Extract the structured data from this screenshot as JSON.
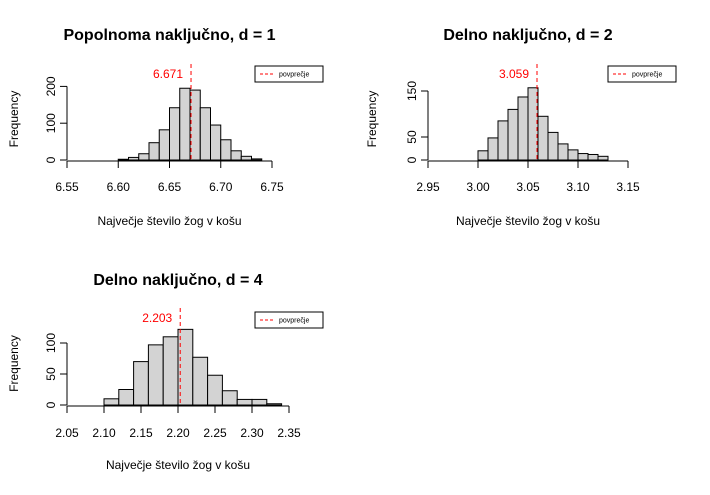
{
  "chart_data": [
    {
      "type": "histogram",
      "title": "Popolnoma naključno, d = 1",
      "xlabel": "Največje število žog v košu",
      "ylabel": "Frequency",
      "xlim": [
        6.55,
        6.75
      ],
      "x_ticks": [
        6.55,
        6.6,
        6.65,
        6.7,
        6.75
      ],
      "x_tick_labels": [
        "6.55",
        "6.60",
        "6.65",
        "6.70",
        "6.75"
      ],
      "y_ticks": [
        0,
        100,
        200
      ],
      "y_tick_labels": [
        "0",
        "100",
        "200"
      ],
      "ylim": [
        0,
        250
      ],
      "bins": [
        {
          "x0": 6.6,
          "x1": 6.61,
          "count": 2
        },
        {
          "x0": 6.61,
          "x1": 6.62,
          "count": 7
        },
        {
          "x0": 6.62,
          "x1": 6.63,
          "count": 17
        },
        {
          "x0": 6.63,
          "x1": 6.64,
          "count": 47
        },
        {
          "x0": 6.64,
          "x1": 6.65,
          "count": 82
        },
        {
          "x0": 6.65,
          "x1": 6.66,
          "count": 142
        },
        {
          "x0": 6.66,
          "x1": 6.67,
          "count": 195
        },
        {
          "x0": 6.67,
          "x1": 6.68,
          "count": 190
        },
        {
          "x0": 6.68,
          "x1": 6.69,
          "count": 142
        },
        {
          "x0": 6.69,
          "x1": 6.7,
          "count": 95
        },
        {
          "x0": 6.7,
          "x1": 6.71,
          "count": 55
        },
        {
          "x0": 6.71,
          "x1": 6.72,
          "count": 25
        },
        {
          "x0": 6.72,
          "x1": 6.73,
          "count": 10
        },
        {
          "x0": 6.73,
          "x1": 6.74,
          "count": 3
        }
      ],
      "mean": 6.671,
      "mean_label": "6.671",
      "legend": "povprečje",
      "mean_color": "#ff0000"
    },
    {
      "type": "histogram",
      "title": "Delno naključno, d = 2",
      "xlabel": "Največje število žog v košu",
      "ylabel": "Frequency",
      "xlim": [
        2.95,
        3.15
      ],
      "x_ticks": [
        2.95,
        3.0,
        3.05,
        3.1,
        3.15
      ],
      "x_tick_labels": [
        "2.95",
        "3.00",
        "3.05",
        "3.10",
        "3.15"
      ],
      "y_ticks": [
        0,
        50,
        150
      ],
      "y_tick_labels": [
        "0",
        "50",
        "150"
      ],
      "ylim": [
        0,
        200
      ],
      "bins": [
        {
          "x0": 3.0,
          "x1": 3.01,
          "count": 20
        },
        {
          "x0": 3.01,
          "x1": 3.02,
          "count": 48
        },
        {
          "x0": 3.02,
          "x1": 3.03,
          "count": 85
        },
        {
          "x0": 3.03,
          "x1": 3.04,
          "count": 110
        },
        {
          "x0": 3.04,
          "x1": 3.05,
          "count": 137
        },
        {
          "x0": 3.05,
          "x1": 3.06,
          "count": 157
        },
        {
          "x0": 3.06,
          "x1": 3.07,
          "count": 95
        },
        {
          "x0": 3.07,
          "x1": 3.08,
          "count": 60
        },
        {
          "x0": 3.08,
          "x1": 3.09,
          "count": 35
        },
        {
          "x0": 3.09,
          "x1": 3.1,
          "count": 22
        },
        {
          "x0": 3.1,
          "x1": 3.11,
          "count": 14
        },
        {
          "x0": 3.11,
          "x1": 3.12,
          "count": 12
        },
        {
          "x0": 3.12,
          "x1": 3.13,
          "count": 8
        }
      ],
      "mean": 3.059,
      "mean_label": "3.059",
      "legend": "povprečje",
      "mean_color": "#ff0000"
    },
    {
      "type": "histogram",
      "title": "Delno naključno, d = 4",
      "xlabel": "Največje število žog v košu",
      "ylabel": "Frequency",
      "xlim": [
        2.05,
        2.35
      ],
      "x_ticks": [
        2.05,
        2.1,
        2.15,
        2.2,
        2.25,
        2.3,
        2.35
      ],
      "x_tick_labels": [
        "2.05",
        "2.10",
        "2.15",
        "2.20",
        "2.25",
        "2.30",
        "2.35"
      ],
      "y_ticks": [
        0,
        50,
        100
      ],
      "y_tick_labels": [
        "0",
        "50",
        "100"
      ],
      "ylim": [
        0,
        150
      ],
      "bins": [
        {
          "x0": 2.1,
          "x1": 2.12,
          "count": 10
        },
        {
          "x0": 2.12,
          "x1": 2.14,
          "count": 25
        },
        {
          "x0": 2.14,
          "x1": 2.16,
          "count": 70
        },
        {
          "x0": 2.16,
          "x1": 2.18,
          "count": 97
        },
        {
          "x0": 2.18,
          "x1": 2.2,
          "count": 110
        },
        {
          "x0": 2.2,
          "x1": 2.22,
          "count": 122
        },
        {
          "x0": 2.22,
          "x1": 2.24,
          "count": 77
        },
        {
          "x0": 2.24,
          "x1": 2.26,
          "count": 48
        },
        {
          "x0": 2.26,
          "x1": 2.28,
          "count": 23
        },
        {
          "x0": 2.28,
          "x1": 2.3,
          "count": 9
        },
        {
          "x0": 2.3,
          "x1": 2.32,
          "count": 9
        },
        {
          "x0": 2.32,
          "x1": 2.34,
          "count": 2
        }
      ],
      "mean": 2.203,
      "mean_label": "2.203",
      "legend": "povprečje",
      "mean_color": "#ff0000"
    }
  ]
}
